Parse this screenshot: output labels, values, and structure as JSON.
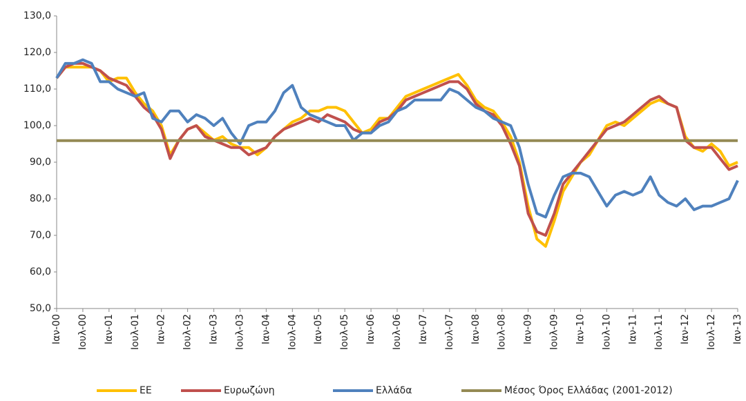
{
  "chart_data": {
    "type": "line",
    "categories": [
      "Ιαν-00",
      null,
      null,
      "Ιουλ-00",
      null,
      null,
      "Ιαν-01",
      null,
      null,
      "Ιουλ-01",
      null,
      null,
      "Ιαν-02",
      null,
      null,
      "Ιουλ-02",
      null,
      null,
      "Ιαν-03",
      null,
      null,
      "Ιουλ-03",
      null,
      null,
      "Ιαν-04",
      null,
      null,
      "Ιουλ-04",
      null,
      null,
      "Ιαν-05",
      null,
      null,
      "Ιουλ-05",
      null,
      null,
      "Ιαν-06",
      null,
      null,
      "Ιουλ-06",
      null,
      null,
      "Ιαν-07",
      null,
      null,
      "Ιουλ-07",
      null,
      null,
      "Ιαν-08",
      null,
      null,
      "Ιουλ-08",
      null,
      null,
      "Ιαν-09",
      null,
      null,
      "Ιουλ-09",
      null,
      null,
      "Ιαν-10",
      null,
      null,
      "Ιουλ-10",
      null,
      null,
      "Ιαν-11",
      null,
      null,
      "Ιουλ-11",
      null,
      null,
      "Ιαν-12",
      null,
      null,
      "Ιουλ-12",
      null,
      null,
      "Ιαν-13"
    ],
    "series": [
      {
        "name": "ΕΕ",
        "color": "#ffc000",
        "values": [
          113,
          116,
          116,
          116,
          116,
          115,
          112,
          113,
          113,
          109,
          106,
          104,
          100,
          92,
          96,
          99,
          100,
          98,
          96,
          97,
          95,
          94,
          94,
          92,
          94,
          97,
          99,
          101,
          102,
          104,
          104,
          105,
          105,
          104,
          101,
          98,
          99,
          102,
          102,
          105,
          108,
          109,
          110,
          111,
          112,
          113,
          114,
          111,
          107,
          105,
          104,
          101,
          97,
          90,
          78,
          69,
          67,
          74,
          82,
          86,
          90,
          92,
          96,
          100,
          101,
          100,
          102,
          104,
          106,
          107,
          106,
          105,
          97,
          94,
          93,
          95,
          93,
          89,
          90
        ]
      },
      {
        "name": "Ευρωζώνη",
        "color": "#c0504d",
        "values": [
          113,
          116,
          117,
          117,
          116,
          115,
          113,
          112,
          111,
          108,
          105,
          103,
          99,
          91,
          96,
          99,
          100,
          97,
          96,
          95,
          94,
          94,
          92,
          93,
          94,
          97,
          99,
          100,
          101,
          102,
          101,
          103,
          102,
          101,
          99,
          98,
          98,
          101,
          102,
          104,
          107,
          108,
          109,
          110,
          111,
          112,
          112,
          110,
          106,
          104,
          103,
          100,
          95,
          89,
          76,
          71,
          70,
          76,
          84,
          87,
          90,
          93,
          96,
          99,
          100,
          101,
          103,
          105,
          107,
          108,
          106,
          105,
          96,
          94,
          94,
          94,
          91,
          88,
          89
        ]
      },
      {
        "name": "Ελλάδα",
        "color": "#4f81bd",
        "values": [
          113,
          117,
          117,
          118,
          117,
          112,
          112,
          110,
          109,
          108,
          109,
          102,
          101,
          104,
          104,
          101,
          103,
          102,
          100,
          102,
          98,
          95,
          100,
          101,
          101,
          104,
          109,
          111,
          105,
          103,
          102,
          101,
          100,
          100,
          96,
          98,
          98,
          100,
          101,
          104,
          105,
          107,
          107,
          107,
          107,
          110,
          109,
          107,
          105,
          104,
          102,
          101,
          100,
          94,
          84,
          76,
          75,
          81,
          86,
          87,
          87,
          86,
          82,
          78,
          81,
          82,
          81,
          82,
          86,
          81,
          79,
          78,
          80,
          77,
          78,
          78,
          79,
          80,
          85
        ]
      },
      {
        "name": "Μέσος Όρος Ελλάδας (2001-2012)",
        "color": "#948a54",
        "values": [
          95.9,
          95.9,
          95.9,
          95.9,
          95.9,
          95.9,
          95.9,
          95.9,
          95.9,
          95.9,
          95.9,
          95.9,
          95.9,
          95.9,
          95.9,
          95.9,
          95.9,
          95.9,
          95.9,
          95.9,
          95.9,
          95.9,
          95.9,
          95.9,
          95.9,
          95.9,
          95.9,
          95.9,
          95.9,
          95.9,
          95.9,
          95.9,
          95.9,
          95.9,
          95.9,
          95.9,
          95.9,
          95.9,
          95.9,
          95.9,
          95.9,
          95.9,
          95.9,
          95.9,
          95.9,
          95.9,
          95.9,
          95.9,
          95.9,
          95.9,
          95.9,
          95.9,
          95.9,
          95.9,
          95.9,
          95.9,
          95.9,
          95.9,
          95.9,
          95.9,
          95.9,
          95.9,
          95.9,
          95.9,
          95.9,
          95.9,
          95.9,
          95.9,
          95.9,
          95.9,
          95.9,
          95.9,
          95.9,
          95.9,
          95.9,
          95.9,
          95.9,
          95.9,
          95.9
        ]
      }
    ],
    "ylim": [
      50,
      130
    ],
    "yticks": [
      {
        "value": 50,
        "label": "50,0"
      },
      {
        "value": 60,
        "label": "60,0"
      },
      {
        "value": 70,
        "label": "70,0"
      },
      {
        "value": 80,
        "label": "80,0"
      },
      {
        "value": 90,
        "label": "90,0"
      },
      {
        "value": 100,
        "label": "100,0"
      },
      {
        "value": 110,
        "label": "110,0"
      },
      {
        "value": 120,
        "label": "120,0"
      },
      {
        "value": 130,
        "label": "130,0"
      }
    ],
    "grid": false,
    "legend": "bottom"
  }
}
